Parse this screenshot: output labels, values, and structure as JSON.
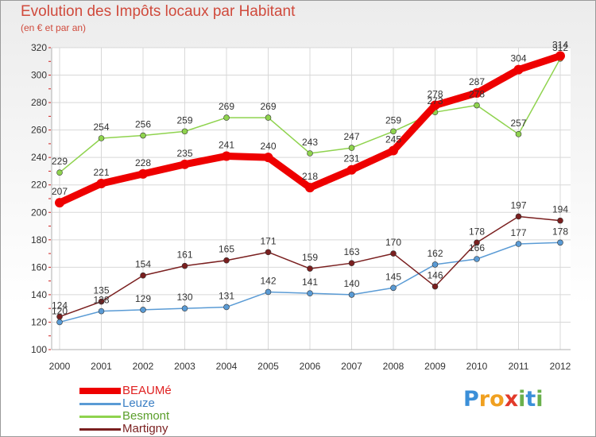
{
  "title": "Evolution des Impôts locaux par Habitant",
  "subtitle": "(en € et par an)",
  "chart_data": {
    "type": "line",
    "title": "Evolution des Impôts locaux par Habitant",
    "subtitle": "(en € et par an)",
    "xlabel": "",
    "ylabel": "",
    "x": [
      2000,
      2001,
      2002,
      2003,
      2004,
      2005,
      2006,
      2007,
      2008,
      2009,
      2010,
      2011,
      2012
    ],
    "ylim": [
      100,
      320
    ],
    "yticks": [
      100,
      120,
      140,
      160,
      180,
      200,
      220,
      240,
      260,
      280,
      300,
      320
    ],
    "grid": true,
    "legend_position": "bottom-left",
    "series": [
      {
        "name": "BEAUMé",
        "color": "#ee0000",
        "values": [
          207,
          221,
          228,
          235,
          241,
          240,
          218,
          231,
          245,
          278,
          287,
          304,
          314
        ]
      },
      {
        "name": "Leuze",
        "color": "#5a9bd5",
        "values": [
          120,
          128,
          129,
          130,
          131,
          142,
          141,
          140,
          145,
          162,
          166,
          177,
          178
        ]
      },
      {
        "name": "Besmont",
        "color": "#8fd34e",
        "values": [
          229,
          254,
          256,
          259,
          269,
          269,
          243,
          247,
          259,
          273,
          278,
          257,
          312
        ]
      },
      {
        "name": "Martigny",
        "color": "#7a1f1f",
        "values": [
          124,
          135,
          154,
          161,
          165,
          171,
          159,
          163,
          170,
          146,
          178,
          197,
          194
        ]
      }
    ]
  },
  "logo": {
    "letters": [
      "P",
      "r",
      "o",
      "x",
      "i",
      "t",
      "i"
    ],
    "colors": [
      "#3b8fd8",
      "#f0a020",
      "#f0a020",
      "#e23a2a",
      "#6ab04c",
      "#3b8fd8",
      "#6ab04c"
    ]
  }
}
